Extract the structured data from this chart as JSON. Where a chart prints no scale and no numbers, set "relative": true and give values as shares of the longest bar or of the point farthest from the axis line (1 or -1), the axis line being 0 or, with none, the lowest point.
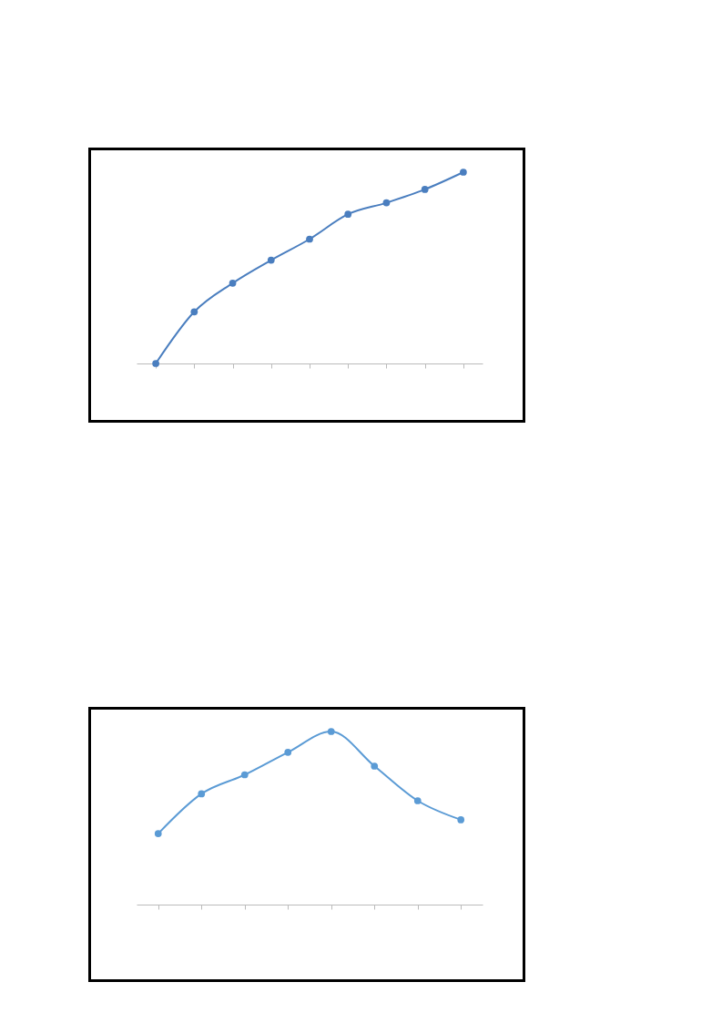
{
  "chart_data": [
    {
      "type": "line",
      "relative": true,
      "categories": [
        null,
        null,
        null,
        null,
        null,
        null,
        null,
        null,
        null
      ],
      "marker": "circle",
      "tick_labels": false,
      "series": [
        {
          "color": "#4a7ebf",
          "values": [
            0,
            0.27,
            0.42,
            0.54,
            0.65,
            0.78,
            0.84,
            0.91,
            1
          ]
        }
      ]
    },
    {
      "type": "line",
      "relative": true,
      "categories": [
        null,
        null,
        null,
        null,
        null,
        null,
        null,
        null
      ],
      "marker": "circle",
      "tick_labels": false,
      "series": [
        {
          "color": "#5b9bd5",
          "values": [
            0.41,
            0.64,
            0.75,
            0.88,
            1,
            0.8,
            0.6,
            0.49
          ]
        }
      ]
    }
  ]
}
